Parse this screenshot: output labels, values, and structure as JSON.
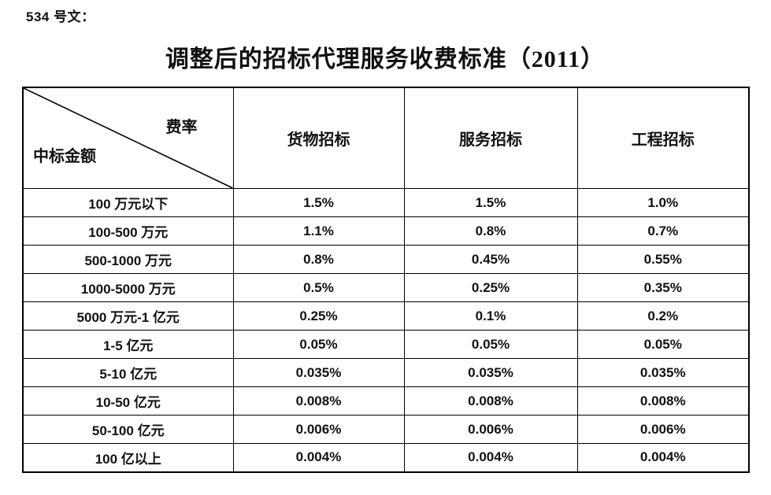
{
  "page": {
    "doc_ref": "534 号文：",
    "title": "调整后的招标代理服务收费标准（2011）"
  },
  "table": {
    "corner": {
      "top_right": "费率",
      "bottom_left": "中标金额"
    },
    "columns": [
      "货物招标",
      "服务招标",
      "工程招标"
    ],
    "rows": [
      {
        "label": "100 万元以下",
        "values": [
          "1.5%",
          "1.5%",
          "1.0%"
        ]
      },
      {
        "label": "100-500 万元",
        "values": [
          "1.1%",
          "0.8%",
          "0.7%"
        ]
      },
      {
        "label": "500-1000 万元",
        "values": [
          "0.8%",
          "0.45%",
          "0.55%"
        ]
      },
      {
        "label": "1000-5000 万元",
        "values": [
          "0.5%",
          "0.25%",
          "0.35%"
        ]
      },
      {
        "label": "5000 万元-1 亿元",
        "values": [
          "0.25%",
          "0.1%",
          "0.2%"
        ]
      },
      {
        "label": "1-5 亿元",
        "values": [
          "0.05%",
          "0.05%",
          "0.05%"
        ]
      },
      {
        "label": "5-10 亿元",
        "values": [
          "0.035%",
          "0.035%",
          "0.035%"
        ]
      },
      {
        "label": "10-50 亿元",
        "values": [
          "0.008%",
          "0.008%",
          "0.008%"
        ]
      },
      {
        "label": "50-100 亿元",
        "values": [
          "0.006%",
          "0.006%",
          "0.006%"
        ]
      },
      {
        "label": "100 亿以上",
        "values": [
          "0.004%",
          "0.004%",
          "0.004%"
        ]
      }
    ],
    "line_color": "#000000",
    "text_color": "#111111"
  }
}
